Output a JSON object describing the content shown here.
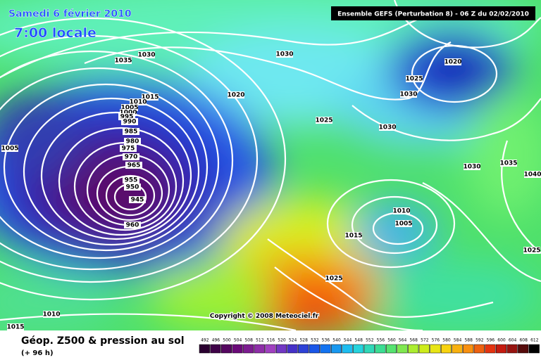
{
  "header": {
    "date": "Samedi 6 février 2010",
    "time": "7:00 locale",
    "model": "Ensemble GEFS (Perturbation 8)  -  06 Z du 02/02/2010"
  },
  "isobar_labels": [
    1035,
    1030,
    1030,
    1020,
    1025,
    1030,
    1020,
    1015,
    1010,
    1005,
    1000,
    995,
    990,
    985,
    980,
    975,
    970,
    965,
    955,
    950,
    945,
    960,
    1005,
    1025,
    1030,
    1030,
    1035,
    1040,
    1010,
    1005,
    1015,
    1025,
    1025,
    1010,
    1015
  ],
  "copyright": "Copyright © 2008 Meteociel.fr",
  "legend": {
    "title": "Géop. Z500 & pression au sol",
    "lead": "(+ 96 h)",
    "scale": [
      492,
      496,
      500,
      504,
      508,
      512,
      516,
      520,
      524,
      528,
      532,
      536,
      540,
      544,
      548,
      552,
      556,
      560,
      564,
      568,
      572,
      576,
      580,
      584,
      588,
      592,
      596,
      600,
      604,
      608,
      612
    ]
  }
}
